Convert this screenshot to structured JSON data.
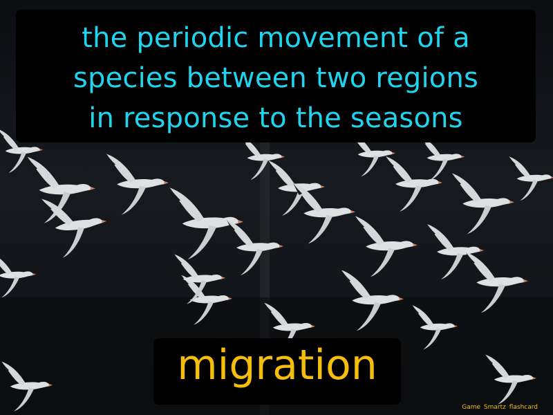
{
  "flashcard": {
    "definition_lines": [
      "the periodic movement of a",
      "species between two regions",
      "in response to the seasons"
    ],
    "term": "migration",
    "watermark": "Game Smartz flashcard"
  },
  "colors": {
    "definition_text": "#20d4ee",
    "term_text": "#f5be0c",
    "box_background": "#000000"
  }
}
